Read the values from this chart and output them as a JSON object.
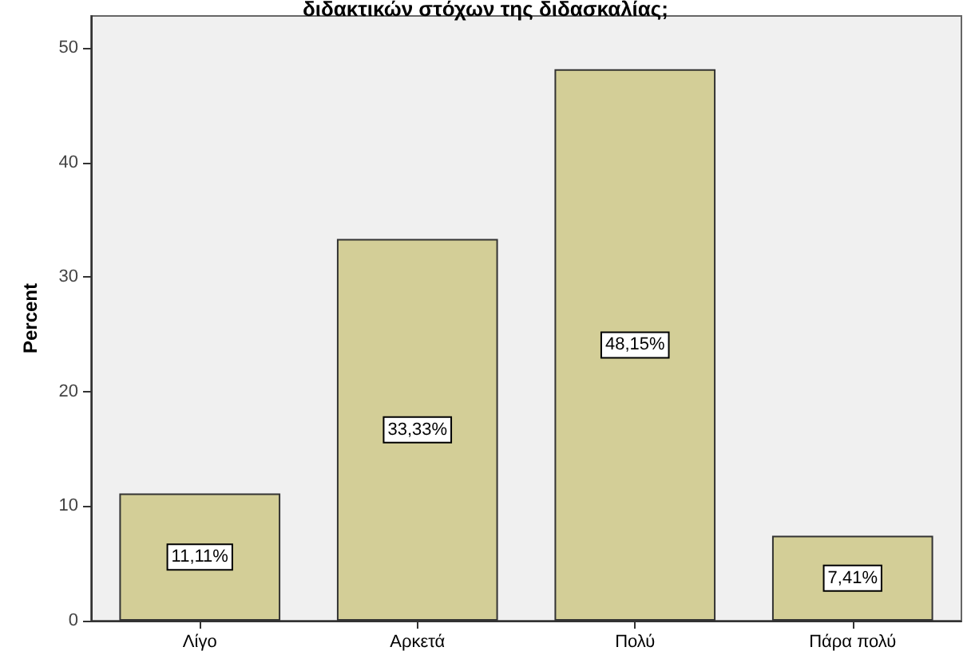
{
  "chart_data": {
    "type": "bar",
    "title": "διδακτικών στόχων της διδασκαλίας;",
    "ylabel": "Percent",
    "categories": [
      "Λίγο",
      "Αρκετά",
      "Πολύ",
      "Πάρα πολύ"
    ],
    "values": [
      11.11,
      33.33,
      48.15,
      7.41
    ],
    "value_labels": [
      "11,11%",
      "33,33%",
      "48,15%",
      "7,41%"
    ],
    "color": "#d3ce97",
    "ylim": [
      0,
      52.8
    ],
    "yticks": [
      0,
      10,
      20,
      30,
      40,
      50
    ],
    "grid": false
  }
}
